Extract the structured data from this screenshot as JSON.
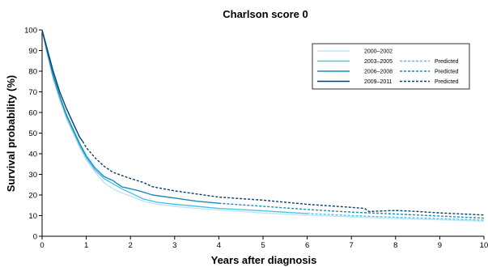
{
  "chart_data": {
    "type": "line",
    "title": "Charlson score 0",
    "xlabel": "Years after diagnosis",
    "ylabel": "Survival probability (%)",
    "xlim": [
      0,
      10
    ],
    "ylim": [
      0,
      100
    ],
    "xticks": [
      "0",
      "1",
      "2",
      "3",
      "4",
      "5",
      "6",
      "7",
      "8",
      "9",
      "10"
    ],
    "yticks": [
      "0",
      "10",
      "20",
      "30",
      "40",
      "50",
      "60",
      "70",
      "80",
      "90",
      "100"
    ],
    "legend_position": "top-right",
    "legend_predicted_label": "Predicted",
    "series": [
      {
        "name": "2000–2002",
        "color": "#bfe6f6",
        "style": "solid",
        "points": [
          [
            0,
            100
          ],
          [
            0.1,
            90
          ],
          [
            0.25,
            76
          ],
          [
            0.4,
            66
          ],
          [
            0.55,
            57
          ],
          [
            0.7,
            50
          ],
          [
            0.85,
            43
          ],
          [
            1,
            37
          ],
          [
            1.2,
            31
          ],
          [
            1.4,
            26
          ],
          [
            1.6,
            23
          ],
          [
            1.8,
            21
          ],
          [
            2,
            19.5
          ],
          [
            2.3,
            17
          ],
          [
            2.6,
            15.5
          ],
          [
            3,
            14.5
          ],
          [
            3.5,
            13.5
          ],
          [
            4,
            12.7
          ],
          [
            5,
            11.3
          ],
          [
            6,
            10.2
          ],
          [
            7,
            9.4
          ],
          [
            8,
            8.6
          ],
          [
            9,
            8
          ],
          [
            10,
            7.2
          ]
        ]
      },
      {
        "name": "2003–2005",
        "color": "#4ec3ea",
        "style": "solid",
        "points": [
          [
            0,
            100
          ],
          [
            0.1,
            90
          ],
          [
            0.25,
            77
          ],
          [
            0.4,
            67
          ],
          [
            0.55,
            58
          ],
          [
            0.7,
            51
          ],
          [
            0.85,
            44
          ],
          [
            1,
            38
          ],
          [
            1.2,
            32
          ],
          [
            1.4,
            28
          ],
          [
            1.6,
            25.5
          ],
          [
            1.8,
            23
          ],
          [
            2,
            21
          ],
          [
            2.3,
            18
          ],
          [
            2.6,
            16.5
          ],
          [
            3,
            15.5
          ],
          [
            3.5,
            14.5
          ],
          [
            4,
            13.5
          ],
          [
            5,
            12.3
          ],
          [
            6,
            11
          ]
        ]
      },
      {
        "name": "2003–2005 predicted",
        "color": "#4ec3ea",
        "style": "dashed",
        "points": [
          [
            6,
            11
          ],
          [
            7,
            10
          ],
          [
            8,
            9.2
          ],
          [
            9,
            8.5
          ],
          [
            10,
            7.8
          ]
        ]
      },
      {
        "name": "2006–2008",
        "color": "#1a8ab8",
        "style": "solid",
        "points": [
          [
            0,
            100
          ],
          [
            0.1,
            91
          ],
          [
            0.25,
            78
          ],
          [
            0.4,
            68
          ],
          [
            0.55,
            59
          ],
          [
            0.7,
            52
          ],
          [
            0.85,
            45
          ],
          [
            1,
            39
          ],
          [
            1.2,
            33
          ],
          [
            1.4,
            29
          ],
          [
            1.6,
            27
          ],
          [
            1.8,
            24
          ],
          [
            2,
            23
          ],
          [
            2.2,
            22
          ],
          [
            2.5,
            20
          ],
          [
            3,
            18.5
          ],
          [
            3.5,
            17
          ],
          [
            4,
            16
          ]
        ]
      },
      {
        "name": "2006–2008 predicted",
        "color": "#1a8ab8",
        "style": "dashed",
        "points": [
          [
            4,
            16
          ],
          [
            5,
            14.5
          ],
          [
            6,
            13
          ],
          [
            7,
            11.7
          ],
          [
            8,
            10.8
          ],
          [
            9,
            9.8
          ],
          [
            10,
            8.8
          ]
        ]
      },
      {
        "name": "2009–2011",
        "color": "#0d3d66",
        "style": "solid",
        "points": [
          [
            0,
            100
          ],
          [
            0.1,
            92
          ],
          [
            0.25,
            80
          ],
          [
            0.4,
            70
          ],
          [
            0.55,
            62
          ],
          [
            0.7,
            55
          ],
          [
            0.85,
            48
          ],
          [
            0.92,
            46
          ]
        ]
      },
      {
        "name": "2009–2011 predicted",
        "color": "#0d3d66",
        "style": "dashed",
        "points": [
          [
            0.92,
            46
          ],
          [
            1,
            43
          ],
          [
            1.2,
            38
          ],
          [
            1.4,
            34
          ],
          [
            1.6,
            31
          ],
          [
            1.8,
            29.5
          ],
          [
            2,
            28
          ],
          [
            2.3,
            26
          ],
          [
            2.5,
            24
          ],
          [
            3,
            22
          ],
          [
            4,
            19
          ],
          [
            5,
            17.5
          ],
          [
            6,
            15.5
          ],
          [
            7,
            14
          ],
          [
            7.3,
            13.5
          ],
          [
            7.4,
            12
          ],
          [
            8,
            12.5
          ],
          [
            8.5,
            12
          ],
          [
            9,
            11.3
          ],
          [
            10,
            10.3
          ]
        ]
      }
    ],
    "legend": [
      {
        "label": "2000–2002",
        "color": "#bfe6f6",
        "predicted": false
      },
      {
        "label": "2003–2005",
        "color": "#4ec3ea",
        "predicted": true
      },
      {
        "label": "2006–2008",
        "color": "#1a8ab8",
        "predicted": true
      },
      {
        "label": "2009–2011",
        "color": "#0d3d66",
        "predicted": true
      }
    ]
  }
}
